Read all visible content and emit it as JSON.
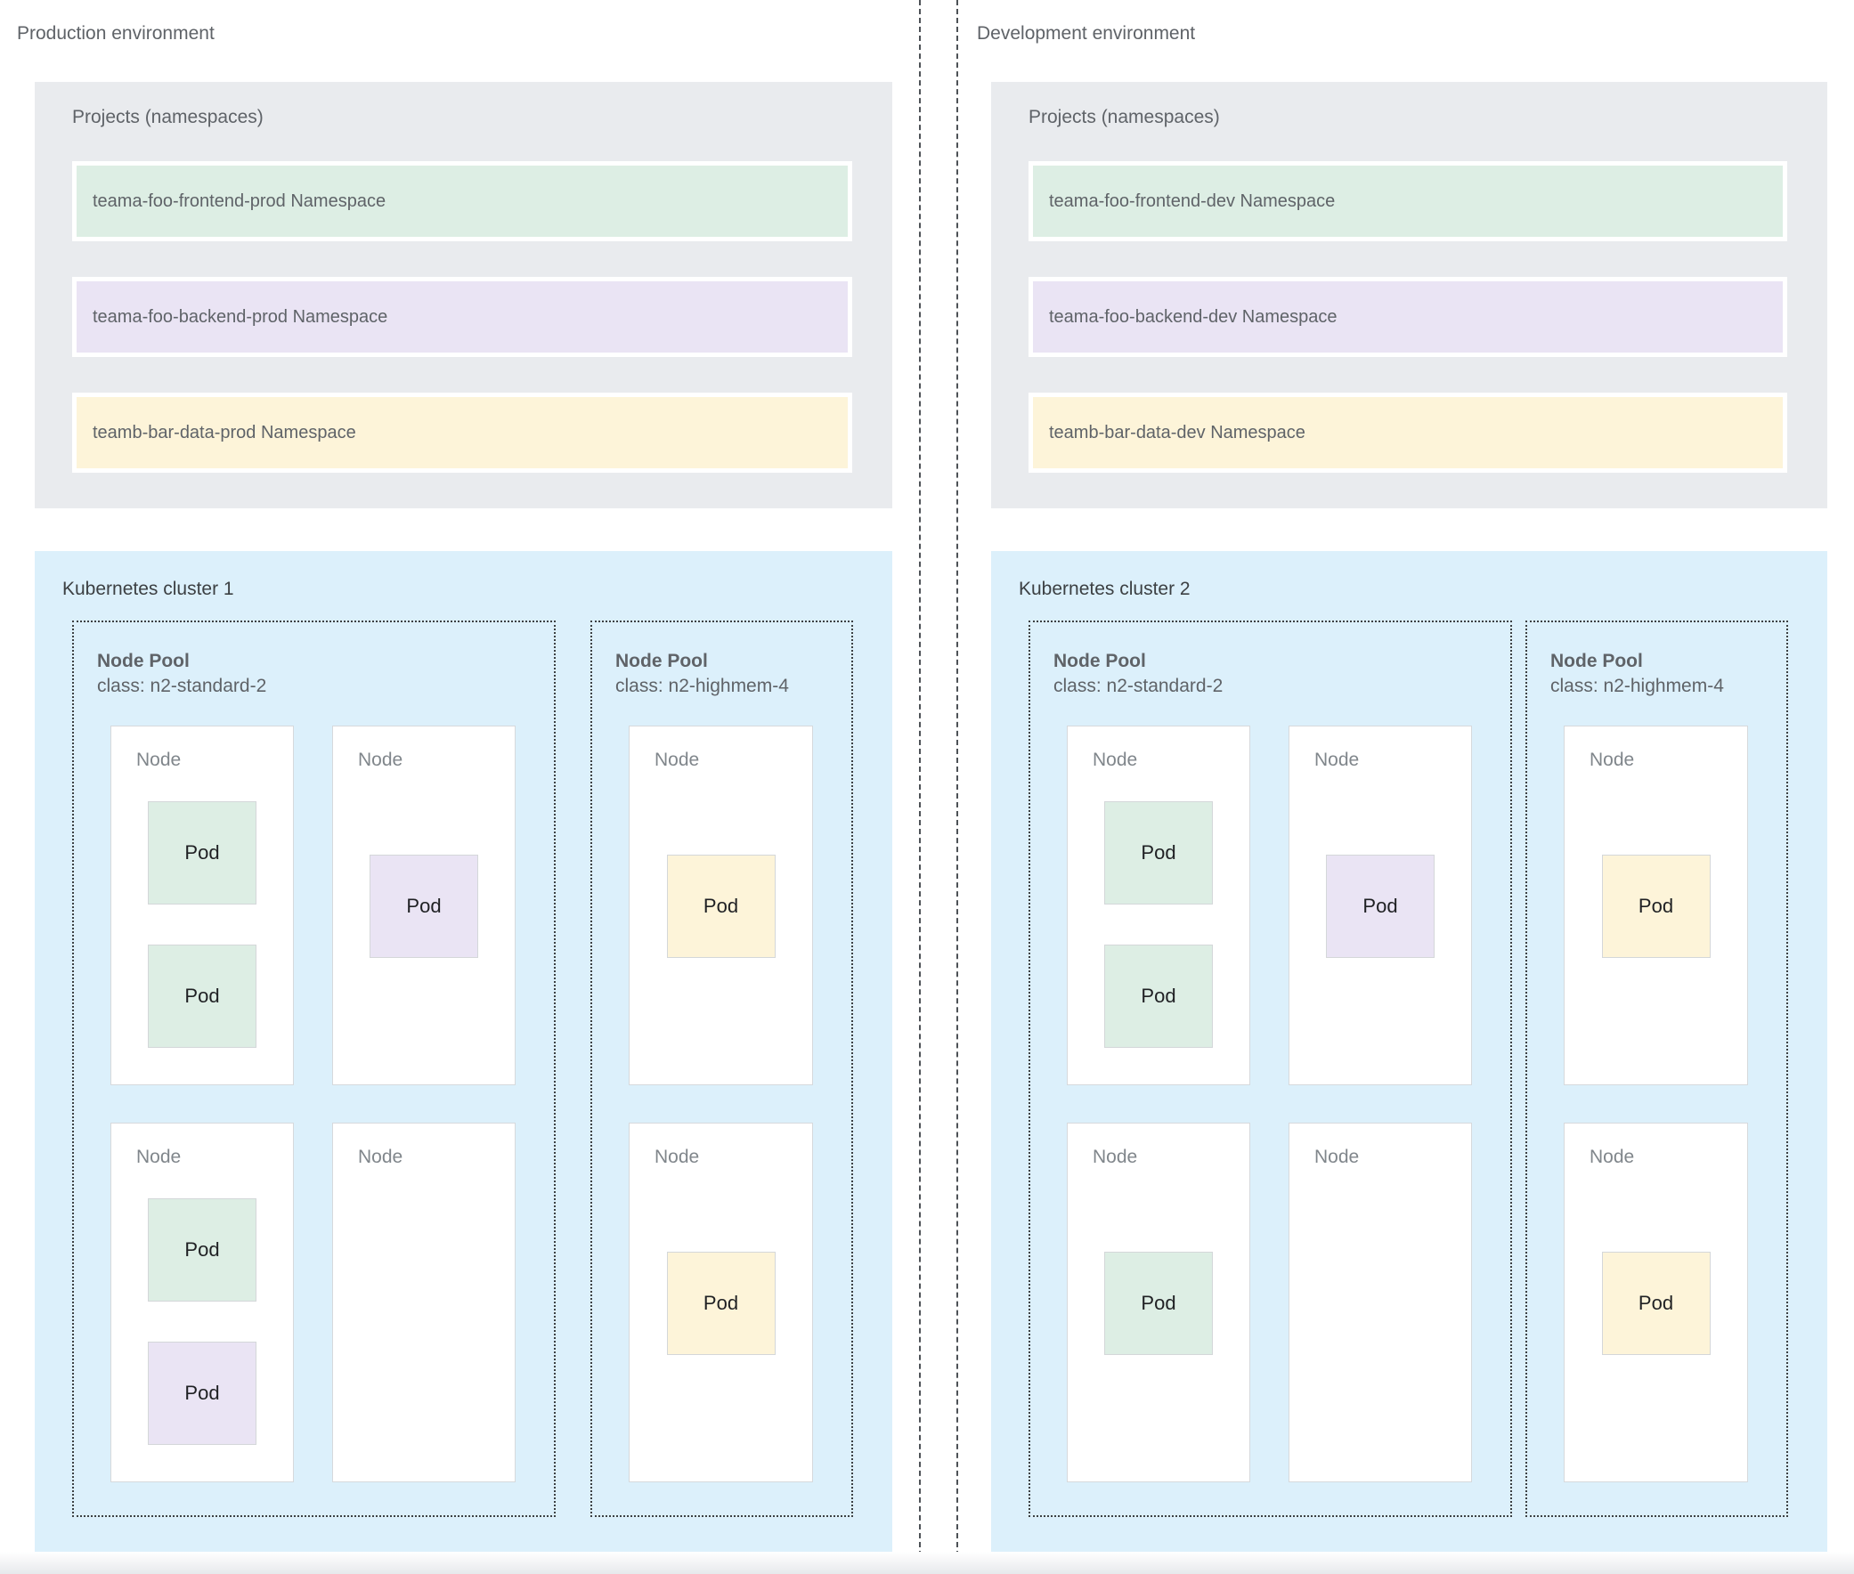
{
  "colors": {
    "green": "#ddeee4",
    "purple": "#eae4f4",
    "yellow": "#fdf4d9",
    "blue_cluster": "#dcf0fb",
    "gray_projects": "#e9ebee",
    "label_gray": "#5f6368"
  },
  "environments": [
    {
      "label": "Production environment",
      "projects": {
        "title": "Projects (namespaces)",
        "namespaces": [
          {
            "label": "teama-foo-frontend-prod Namespace",
            "color": "green"
          },
          {
            "label": "teama-foo-backend-prod Namespace",
            "color": "purple"
          },
          {
            "label": "teamb-bar-data-prod Namespace",
            "color": "yellow"
          }
        ]
      },
      "cluster": {
        "title": "Kubernetes cluster 1",
        "node_pools": [
          {
            "title": "Node Pool",
            "class_line": "class: n2-standard-2",
            "columns": 2,
            "nodes": [
              {
                "label": "Node",
                "pods": [
                  {
                    "label": "Pod",
                    "color": "green"
                  },
                  {
                    "label": "Pod",
                    "color": "green"
                  }
                ]
              },
              {
                "label": "Node",
                "pods": [
                  {
                    "label": "Pod",
                    "color": "purple"
                  }
                ]
              },
              {
                "label": "Node",
                "pods": [
                  {
                    "label": "Pod",
                    "color": "green"
                  },
                  {
                    "label": "Pod",
                    "color": "purple"
                  }
                ]
              },
              {
                "label": "Node",
                "pods": []
              }
            ]
          },
          {
            "title": "Node Pool",
            "class_line": "class: n2-highmem-4",
            "columns": 1,
            "nodes": [
              {
                "label": "Node",
                "pods": [
                  {
                    "label": "Pod",
                    "color": "yellow"
                  }
                ]
              },
              {
                "label": "Node",
                "pods": [
                  {
                    "label": "Pod",
                    "color": "yellow"
                  }
                ]
              }
            ]
          }
        ]
      }
    },
    {
      "label": "Development environment",
      "projects": {
        "title": "Projects (namespaces)",
        "namespaces": [
          {
            "label": "teama-foo-frontend-dev Namespace",
            "color": "green"
          },
          {
            "label": "teama-foo-backend-dev Namespace",
            "color": "purple"
          },
          {
            "label": "teamb-bar-data-dev Namespace",
            "color": "yellow"
          }
        ]
      },
      "cluster": {
        "title": "Kubernetes cluster 2",
        "node_pools": [
          {
            "title": "Node Pool",
            "class_line": "class: n2-standard-2",
            "columns": 2,
            "nodes": [
              {
                "label": "Node",
                "pods": [
                  {
                    "label": "Pod",
                    "color": "green"
                  },
                  {
                    "label": "Pod",
                    "color": "green"
                  }
                ]
              },
              {
                "label": "Node",
                "pods": [
                  {
                    "label": "Pod",
                    "color": "purple"
                  }
                ]
              },
              {
                "label": "Node",
                "pods": [
                  {
                    "label": "Pod",
                    "color": "green"
                  }
                ]
              },
              {
                "label": "Node",
                "pods": []
              }
            ]
          },
          {
            "title": "Node Pool",
            "class_line": "class: n2-highmem-4",
            "columns": 1,
            "nodes": [
              {
                "label": "Node",
                "pods": [
                  {
                    "label": "Pod",
                    "color": "yellow"
                  }
                ]
              },
              {
                "label": "Node",
                "pods": [
                  {
                    "label": "Pod",
                    "color": "yellow"
                  }
                ]
              }
            ]
          }
        ]
      }
    }
  ]
}
